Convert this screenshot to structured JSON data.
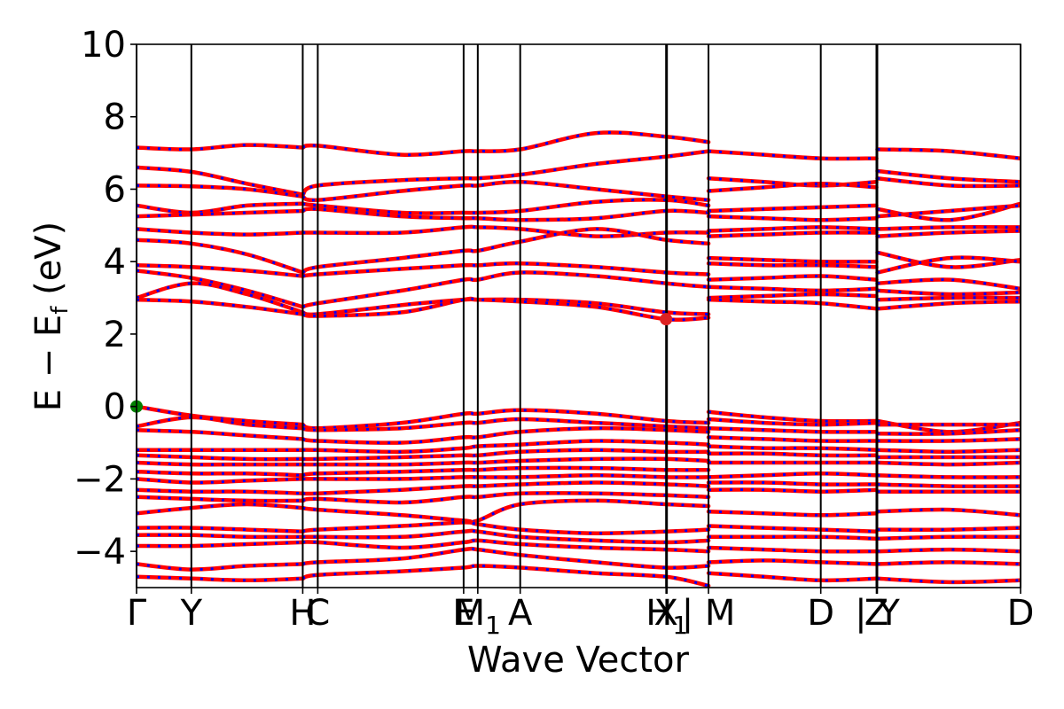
{
  "chart_data": {
    "type": "line",
    "title": "",
    "xlabel": "Wave Vector",
    "ylabel_parts": {
      "main": "E − E",
      "sub": "f",
      "unit": " (eV)"
    },
    "ylim": [
      -5,
      10
    ],
    "yticks": [
      -4,
      -2,
      0,
      2,
      4,
      6,
      8,
      10
    ],
    "ytick_labels": [
      "−4",
      "−2",
      "0",
      "2",
      "4",
      "6",
      "8",
      "10"
    ],
    "grid": false,
    "legend": "none",
    "high_symmetry_ticks": [
      {
        "label": "Γ",
        "x": 0.0
      },
      {
        "label": "Y",
        "x": 0.62
      },
      {
        "label": "H",
        "x": 1.88
      },
      {
        "label": "C",
        "x": 2.05
      },
      {
        "label": "E",
        "x": 3.7
      },
      {
        "label": "M",
        "sub": "1",
        "x": 3.86
      },
      {
        "label": "A",
        "x": 4.34
      },
      {
        "label": "X",
        "x": 5.99
      },
      {
        "label": "H",
        "sub": "1",
        "x": 6.0
      },
      {
        "label": "| M",
        "x": 6.47
      },
      {
        "label": "D",
        "x": 7.74
      },
      {
        "label": "Z",
        "x": 8.37
      },
      {
        "label": "| Y",
        "x": 8.38
      },
      {
        "label": "D",
        "x": 10.0
      }
    ],
    "line_colors": {
      "spin_up": "#ff0000",
      "spin_down": "#0000ff"
    },
    "marker_colors": {
      "vbm": "#008000",
      "cbm": "#dd2222"
    },
    "vbm": {
      "x": 0.0,
      "y": 0.0
    },
    "cbm": {
      "x": 5.99,
      "y": 2.41
    },
    "segments": [
      {
        "x": [
          0.0,
          0.62,
          1.25,
          1.88
        ],
        "bands": [
          [
            7.15,
            7.1,
            7.22,
            7.15
          ],
          [
            6.6,
            6.48,
            6.15,
            5.85
          ],
          [
            6.1,
            6.08,
            6.0,
            5.8
          ],
          [
            5.55,
            5.35,
            5.55,
            5.6
          ],
          [
            5.25,
            5.3,
            5.35,
            5.4
          ],
          [
            4.9,
            4.8,
            4.75,
            4.8
          ],
          [
            4.6,
            4.5,
            4.2,
            3.7
          ],
          [
            3.9,
            3.85,
            3.75,
            3.6
          ],
          [
            3.75,
            3.55,
            3.2,
            2.75
          ],
          [
            3.0,
            3.4,
            3.1,
            2.6
          ],
          [
            2.95,
            2.9,
            2.75,
            2.55
          ],
          [
            0.0,
            -0.25,
            -0.4,
            -0.5
          ],
          [
            -0.55,
            -0.3,
            -0.5,
            -0.6
          ],
          [
            -0.65,
            -0.7,
            -0.8,
            -0.9
          ],
          [
            -1.2,
            -1.2,
            -1.2,
            -1.2
          ],
          [
            -1.35,
            -1.4,
            -1.45,
            -1.45
          ],
          [
            -1.55,
            -1.6,
            -1.6,
            -1.6
          ],
          [
            -1.8,
            -1.85,
            -1.85,
            -1.9
          ],
          [
            -2.0,
            -2.1,
            -2.05,
            -2.0
          ],
          [
            -2.3,
            -2.35,
            -2.35,
            -2.4
          ],
          [
            -2.5,
            -2.55,
            -2.6,
            -2.6
          ],
          [
            -2.95,
            -2.8,
            -2.7,
            -2.8
          ],
          [
            -3.35,
            -3.35,
            -3.4,
            -3.45
          ],
          [
            -3.55,
            -3.55,
            -3.6,
            -3.6
          ],
          [
            -3.85,
            -3.85,
            -3.8,
            -3.75
          ],
          [
            -4.35,
            -4.5,
            -4.4,
            -4.35
          ],
          [
            -4.7,
            -4.75,
            -4.8,
            -4.75
          ]
        ]
      },
      {
        "x": [
          1.88,
          2.05,
          3.0,
          3.7,
          3.86,
          4.34,
          5.2,
          5.99,
          6.47
        ],
        "bands": [
          [
            7.15,
            7.2,
            6.95,
            7.05,
            7.05,
            7.1,
            7.55,
            7.45,
            7.3
          ],
          [
            5.85,
            6.1,
            6.25,
            6.3,
            6.3,
            6.4,
            6.7,
            6.9,
            7.05
          ],
          [
            5.8,
            5.7,
            5.95,
            6.1,
            6.1,
            6.2,
            6.0,
            5.8,
            5.7
          ],
          [
            5.6,
            5.55,
            5.35,
            5.35,
            5.35,
            5.4,
            5.65,
            5.7,
            5.55
          ],
          [
            5.4,
            5.45,
            5.25,
            5.2,
            5.2,
            5.15,
            5.2,
            5.4,
            5.35
          ],
          [
            4.8,
            4.8,
            4.8,
            4.95,
            4.95,
            4.9,
            4.7,
            4.8,
            4.8
          ],
          [
            3.7,
            3.85,
            4.1,
            4.3,
            4.3,
            4.55,
            4.9,
            4.6,
            4.5
          ],
          [
            3.6,
            3.65,
            3.8,
            3.9,
            3.9,
            3.95,
            3.85,
            3.7,
            3.65
          ],
          [
            2.75,
            2.85,
            3.2,
            3.5,
            3.5,
            3.7,
            3.6,
            3.4,
            3.3
          ],
          [
            2.6,
            2.55,
            2.8,
            2.95,
            2.95,
            2.95,
            2.85,
            2.6,
            2.55
          ],
          [
            2.55,
            2.5,
            2.6,
            2.95,
            2.95,
            2.9,
            2.75,
            2.41,
            2.45
          ],
          [
            -0.5,
            -0.6,
            -0.45,
            -0.2,
            -0.2,
            -0.1,
            -0.2,
            -0.4,
            -0.45
          ],
          [
            -0.6,
            -0.65,
            -0.6,
            -0.45,
            -0.45,
            -0.35,
            -0.45,
            -0.55,
            -0.6
          ],
          [
            -0.9,
            -0.95,
            -1.0,
            -0.85,
            -0.85,
            -0.7,
            -0.6,
            -0.65,
            -0.7
          ],
          [
            -1.2,
            -1.2,
            -1.25,
            -1.15,
            -1.1,
            -1.05,
            -0.95,
            -1.0,
            -1.05
          ],
          [
            -1.45,
            -1.45,
            -1.4,
            -1.35,
            -1.35,
            -1.25,
            -1.2,
            -1.25,
            -1.25
          ],
          [
            -1.6,
            -1.6,
            -1.6,
            -1.55,
            -1.55,
            -1.5,
            -1.45,
            -1.45,
            -1.5
          ],
          [
            -1.9,
            -1.85,
            -1.8,
            -1.75,
            -1.75,
            -1.7,
            -1.7,
            -1.75,
            -1.75
          ],
          [
            -2.0,
            -2.0,
            -2.0,
            -1.95,
            -1.95,
            -1.95,
            -1.9,
            -1.95,
            -1.95
          ],
          [
            -2.4,
            -2.4,
            -2.3,
            -2.2,
            -2.2,
            -2.15,
            -2.1,
            -2.15,
            -2.2
          ],
          [
            -2.6,
            -2.55,
            -2.65,
            -2.5,
            -2.5,
            -2.4,
            -2.4,
            -2.45,
            -2.5
          ],
          [
            -2.8,
            -2.85,
            -3.0,
            -3.15,
            -3.15,
            -2.7,
            -2.6,
            -2.7,
            -2.75
          ],
          [
            -3.45,
            -3.4,
            -3.3,
            -3.2,
            -3.25,
            -3.4,
            -3.5,
            -3.45,
            -3.4
          ],
          [
            -3.6,
            -3.6,
            -3.6,
            -3.45,
            -3.45,
            -3.6,
            -3.7,
            -3.75,
            -3.7
          ],
          [
            -3.75,
            -3.75,
            -3.9,
            -3.75,
            -3.7,
            -3.8,
            -3.9,
            -3.95,
            -4.0
          ],
          [
            -4.35,
            -4.3,
            -4.2,
            -3.95,
            -3.95,
            -4.1,
            -4.3,
            -4.45,
            -4.4
          ],
          [
            -4.75,
            -4.65,
            -4.55,
            -4.45,
            -4.4,
            -4.45,
            -4.6,
            -4.7,
            -4.95
          ]
        ]
      },
      {
        "x": [
          6.47,
          7.1,
          7.74,
          8.37
        ],
        "bands": [
          [
            7.05,
            6.95,
            6.85,
            6.85
          ],
          [
            6.3,
            6.2,
            6.1,
            6.2
          ],
          [
            5.95,
            6.05,
            6.15,
            6.05
          ],
          [
            5.4,
            5.45,
            5.5,
            5.55
          ],
          [
            5.25,
            5.2,
            5.15,
            5.2
          ],
          [
            4.85,
            4.9,
            4.95,
            4.9
          ],
          [
            4.7,
            4.75,
            4.8,
            4.8
          ],
          [
            4.1,
            4.05,
            4.0,
            4.0
          ],
          [
            3.95,
            3.9,
            3.9,
            3.85
          ],
          [
            3.5,
            3.55,
            3.6,
            3.5
          ],
          [
            3.3,
            3.25,
            3.2,
            3.25
          ],
          [
            3.0,
            3.05,
            3.1,
            3.05
          ],
          [
            2.95,
            2.9,
            2.85,
            2.7
          ],
          [
            -0.15,
            -0.3,
            -0.4,
            -0.4
          ],
          [
            -0.35,
            -0.45,
            -0.5,
            -0.45
          ],
          [
            -0.6,
            -0.65,
            -0.7,
            -0.7
          ],
          [
            -0.85,
            -0.9,
            -0.95,
            -0.95
          ],
          [
            -1.1,
            -1.15,
            -1.15,
            -1.2
          ],
          [
            -1.3,
            -1.3,
            -1.35,
            -1.35
          ],
          [
            -1.55,
            -1.55,
            -1.55,
            -1.55
          ],
          [
            -1.95,
            -1.9,
            -1.85,
            -1.9
          ],
          [
            -2.1,
            -2.1,
            -2.15,
            -2.15
          ],
          [
            -2.3,
            -2.3,
            -2.35,
            -2.3
          ],
          [
            -2.9,
            -2.95,
            -3.0,
            -2.95
          ],
          [
            -3.3,
            -3.35,
            -3.4,
            -3.45
          ],
          [
            -3.6,
            -3.6,
            -3.6,
            -3.65
          ],
          [
            -3.9,
            -3.95,
            -4.0,
            -4.0
          ],
          [
            -4.3,
            -4.25,
            -4.3,
            -4.35
          ],
          [
            -4.6,
            -4.7,
            -4.8,
            -4.75
          ]
        ]
      },
      {
        "x": [
          8.38,
          9.2,
          10.0
        ],
        "bands": [
          [
            7.1,
            7.05,
            6.85
          ],
          [
            6.5,
            6.3,
            6.2
          ],
          [
            6.3,
            6.1,
            6.1
          ],
          [
            5.45,
            5.15,
            5.6
          ],
          [
            5.25,
            5.4,
            5.55
          ],
          [
            4.9,
            4.95,
            4.95
          ],
          [
            4.7,
            4.8,
            4.85
          ],
          [
            4.25,
            3.85,
            4.05
          ],
          [
            3.7,
            4.1,
            4.0
          ],
          [
            3.4,
            3.5,
            3.25
          ],
          [
            3.2,
            3.1,
            3.15
          ],
          [
            2.95,
            3.0,
            3.0
          ],
          [
            2.7,
            2.85,
            2.9
          ],
          [
            -0.4,
            -0.7,
            -0.45
          ],
          [
            -0.5,
            -0.5,
            -0.5
          ],
          [
            -0.75,
            -0.75,
            -0.65
          ],
          [
            -0.95,
            -0.95,
            -0.9
          ],
          [
            -1.2,
            -1.25,
            -1.2
          ],
          [
            -1.4,
            -1.4,
            -1.4
          ],
          [
            -1.55,
            -1.6,
            -1.55
          ],
          [
            -1.9,
            -1.95,
            -1.95
          ],
          [
            -2.15,
            -2.2,
            -2.2
          ],
          [
            -2.35,
            -2.35,
            -2.35
          ],
          [
            -2.9,
            -2.85,
            -3.0
          ],
          [
            -3.4,
            -3.4,
            -3.35
          ],
          [
            -3.65,
            -3.6,
            -3.6
          ],
          [
            -4.0,
            -3.95,
            -4.0
          ],
          [
            -4.35,
            -4.3,
            -4.35
          ],
          [
            -4.75,
            -4.85,
            -4.8
          ]
        ]
      }
    ]
  }
}
